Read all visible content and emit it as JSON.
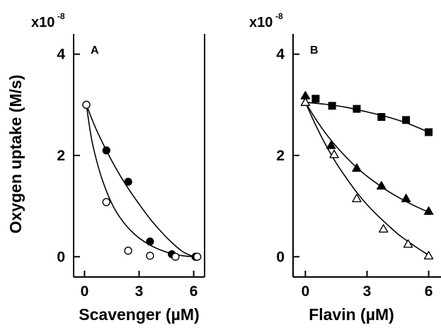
{
  "figure": {
    "y_label": "Oxygen uptake (M/s)",
    "y_multiplier": {
      "prefix": "x10",
      "exponent": "-8"
    }
  },
  "chart_data": [
    {
      "type": "scatter",
      "panel": "A",
      "title": "",
      "xlabel": "Scavenger (µM)",
      "ylabel": "Oxygen uptake (M/s)",
      "xlim": [
        -0.6,
        6.6
      ],
      "ylim": [
        -0.4,
        4.4
      ],
      "xticks": [
        0,
        3,
        6
      ],
      "yticks": [
        0,
        2,
        4
      ],
      "grid": false,
      "legend": "none",
      "series": [
        {
          "marker": "filled-circle",
          "x": [
            0.1,
            1.2,
            2.4,
            3.6,
            4.8,
            6.1
          ],
          "y": [
            3.0,
            2.1,
            1.48,
            0.3,
            0.05,
            0.0
          ]
        },
        {
          "marker": "open-circle",
          "x": [
            0.1,
            1.2,
            2.4,
            3.6,
            5.0,
            6.2
          ],
          "y": [
            3.0,
            1.08,
            0.12,
            0.02,
            0.0,
            0.0
          ]
        }
      ],
      "fits": [
        {
          "x": [
            0.1,
            0.6,
            1.2,
            1.8,
            2.4,
            3.0,
            3.6,
            4.2,
            4.8,
            5.4,
            6.0
          ],
          "y": [
            3.0,
            2.55,
            2.1,
            1.7,
            1.35,
            1.04,
            0.75,
            0.5,
            0.28,
            0.1,
            0.0
          ]
        },
        {
          "x": [
            0.1,
            0.4,
            0.8,
            1.2,
            1.6,
            2.0,
            2.5,
            3.0,
            3.6,
            4.2,
            4.8,
            5.4,
            6.0
          ],
          "y": [
            3.0,
            2.3,
            1.72,
            1.3,
            0.98,
            0.75,
            0.53,
            0.37,
            0.23,
            0.13,
            0.06,
            0.02,
            0.0
          ]
        }
      ]
    },
    {
      "type": "scatter",
      "panel": "B",
      "title": "",
      "xlabel": "Flavin (µM)",
      "ylabel": "Oxygen uptake (M/s)",
      "xlim": [
        -0.6,
        6.6
      ],
      "ylim": [
        -0.4,
        4.4
      ],
      "xticks": [
        0,
        3,
        6
      ],
      "yticks": [
        0,
        2,
        4
      ],
      "grid": false,
      "legend": "none",
      "series": [
        {
          "marker": "filled-square",
          "x": [
            0.5,
            1.3,
            2.5,
            3.7,
            4.9,
            6.0
          ],
          "y": [
            3.12,
            2.98,
            2.92,
            2.76,
            2.7,
            2.46
          ]
        },
        {
          "marker": "filled-triangle",
          "x": [
            0.0,
            1.25,
            2.5,
            3.7,
            4.9,
            6.0
          ],
          "y": [
            3.18,
            2.2,
            1.75,
            1.4,
            1.15,
            0.9
          ]
        },
        {
          "marker": "open-triangle",
          "x": [
            0.0,
            1.4,
            2.5,
            3.8,
            5.0,
            6.0
          ],
          "y": [
            3.05,
            2.02,
            1.15,
            0.55,
            0.25,
            0.02
          ]
        }
      ],
      "fits": [
        {
          "x": [
            0.0,
            1.0,
            2.0,
            3.0,
            4.0,
            5.0,
            6.0
          ],
          "y": [
            3.05,
            3.01,
            2.95,
            2.86,
            2.76,
            2.63,
            2.46
          ]
        },
        {
          "x": [
            0.0,
            0.5,
            1.0,
            1.5,
            2.0,
            2.5,
            3.0,
            3.5,
            4.0,
            4.5,
            5.0,
            5.5,
            6.0
          ],
          "y": [
            3.05,
            2.72,
            2.43,
            2.18,
            1.96,
            1.76,
            1.59,
            1.44,
            1.3,
            1.18,
            1.07,
            0.97,
            0.88
          ]
        },
        {
          "x": [
            0.0,
            0.5,
            1.0,
            1.5,
            2.0,
            2.5,
            3.0,
            3.5,
            4.0,
            4.5,
            5.0,
            5.5,
            6.0
          ],
          "y": [
            3.05,
            2.6,
            2.2,
            1.85,
            1.55,
            1.27,
            1.03,
            0.82,
            0.63,
            0.45,
            0.3,
            0.16,
            0.03
          ]
        }
      ]
    }
  ]
}
